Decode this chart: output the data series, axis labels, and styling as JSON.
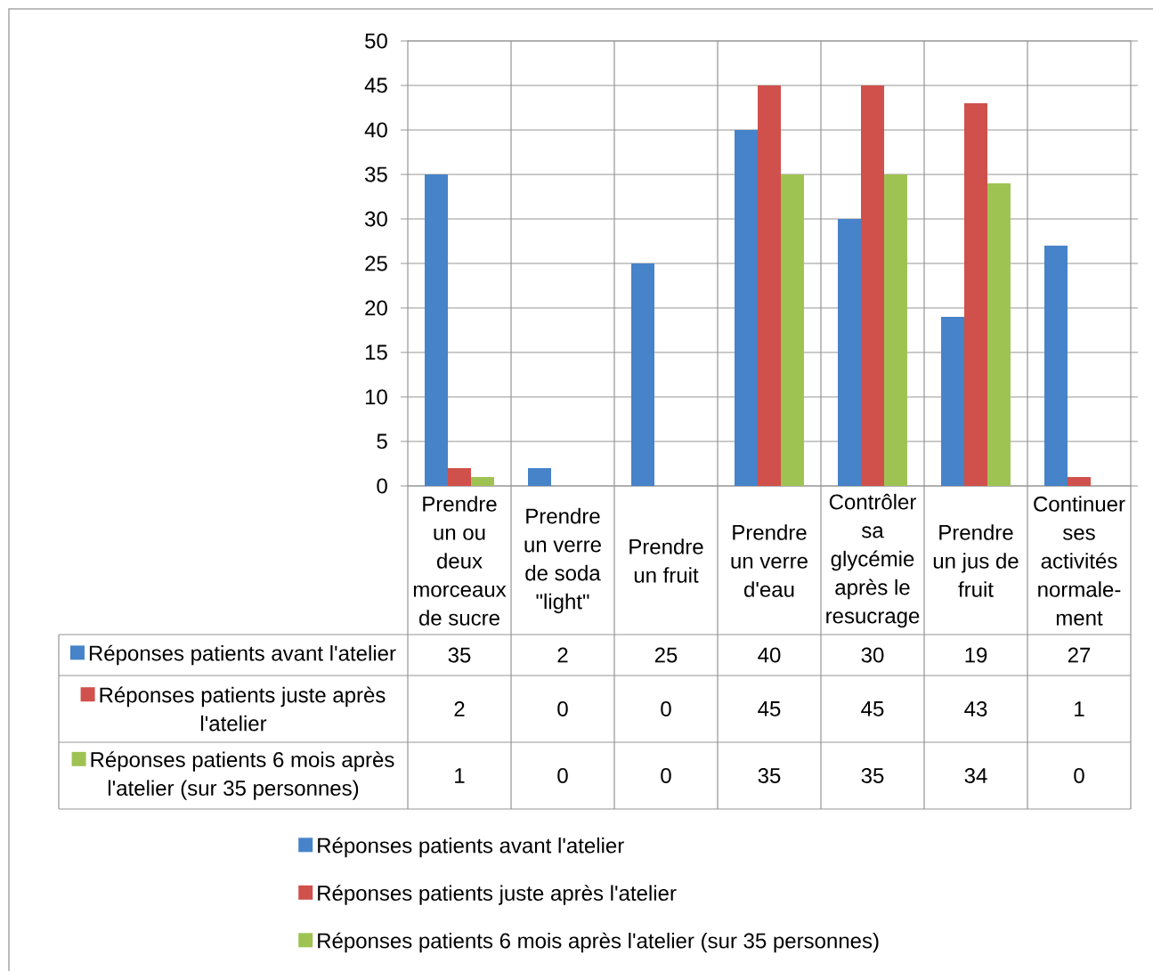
{
  "chart_data": {
    "type": "bar",
    "categories": [
      "Prendre un ou deux morceaux de sucre",
      "Prendre un verre de soda \"light\"",
      "Prendre un fruit",
      "Prendre un verre d'eau",
      "Contrôler sa glycémie après le resucrage",
      "Prendre un jus de fruit",
      "Continuer ses activités normale-ment"
    ],
    "series": [
      {
        "name": "Réponses patients avant l'atelier",
        "color": "#4683c9",
        "values": [
          35,
          2,
          25,
          40,
          30,
          19,
          27
        ]
      },
      {
        "name": "Réponses patients juste après l'atelier",
        "color": "#d0504b",
        "values": [
          2,
          0,
          0,
          45,
          45,
          43,
          1
        ]
      },
      {
        "name": "Réponses patients 6 mois après l'atelier (sur 35 personnes)",
        "color": "#9fc353",
        "values": [
          1,
          0,
          0,
          35,
          35,
          34,
          0
        ]
      }
    ],
    "ylim": [
      0,
      50
    ],
    "yticks": [
      0,
      5,
      10,
      15,
      20,
      25,
      30,
      35,
      40,
      45,
      50
    ],
    "grid": true,
    "legend": "bottom",
    "data_labels": true
  }
}
